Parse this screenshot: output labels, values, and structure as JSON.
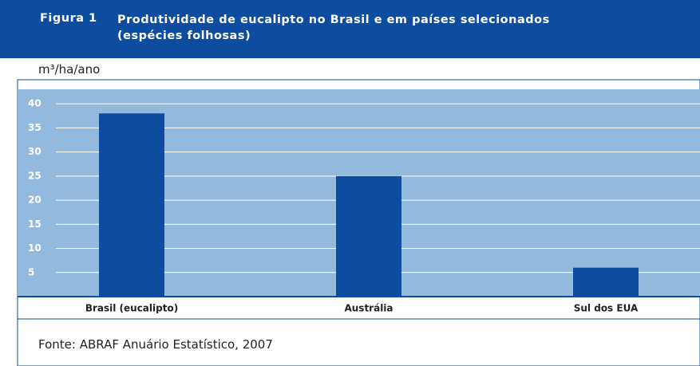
{
  "chart_data": {
    "type": "bar",
    "figure_label": "Figura 1",
    "title": "Produtividade de eucalipto no Brasil e em países selecionados (espécies folhosas)",
    "y_label": "m³/ha/ano",
    "categories": [
      "Brasil (eucalipto)",
      "Austrália",
      "Sul dos EUA"
    ],
    "values": [
      38,
      25,
      6
    ],
    "color": "#0d4c9e",
    "ylim": [
      0,
      43
    ],
    "yticks": [
      5,
      10,
      15,
      20,
      25,
      30,
      35,
      40
    ],
    "grid": true,
    "source": "Fonte: ABRAF Anuário Estatístico, 2007"
  }
}
